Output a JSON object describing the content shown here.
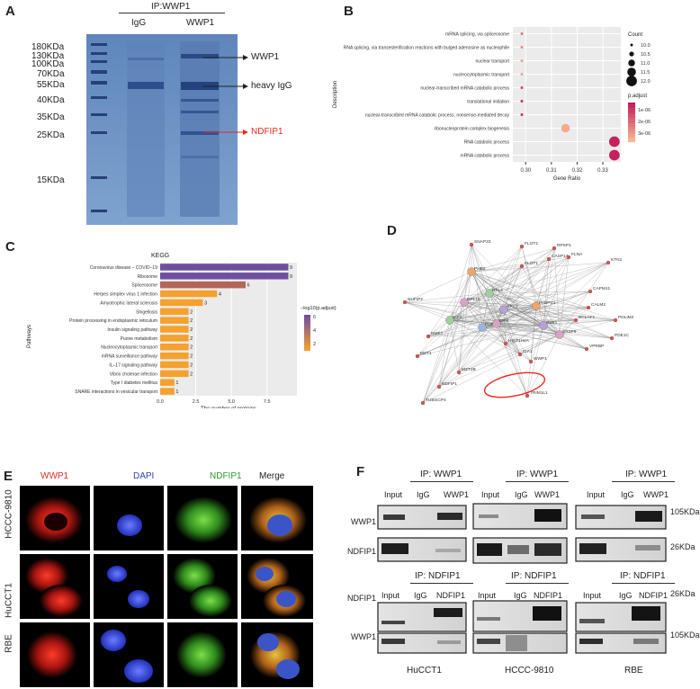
{
  "panels": {
    "A": {
      "letter": "A",
      "ip_header": "IP:WWP1",
      "lanes": [
        "IgG",
        "WWP1"
      ],
      "markers": [
        "180KDa",
        "130KDa",
        "100KDa",
        "70KDa",
        "55KDa",
        "40KDa",
        "35KDa",
        "25KDa",
        "15KDa"
      ],
      "annotations": [
        {
          "label": "WWP1",
          "color": "#222222"
        },
        {
          "label": "heavy IgG",
          "color": "#222222"
        },
        {
          "label": "NDFIP1",
          "color": "#e8271d"
        }
      ]
    },
    "B": {
      "letter": "B",
      "chart_data": {
        "type": "scatter",
        "xlabel": "Gene Ratio",
        "ylabel": "Description",
        "x_ticks": [
          "0.30",
          "0.31",
          "0.32",
          "0.33"
        ],
        "xlim": [
          0.295,
          0.337
        ],
        "categories": [
          "mRNA splicing, via spliceosome",
          "RNA splicing, via transesterification reactions with bulged adenosine as nucleophile",
          "nuclear transport",
          "nucleocytoplasmic transport",
          "nuclear-transcribed mRNA catabolic process",
          "translational initiation",
          "nuclear-transcribed mRNA catabolic process, nonsense-mediated decay",
          "ribonucleoprotein complex biogenesis",
          "RNA catabolic process",
          "mRNA catabolic process"
        ],
        "points": [
          {
            "x": 0.2985,
            "count": 10.0,
            "padj": 2e-06
          },
          {
            "x": 0.2985,
            "count": 10.0,
            "padj": 2.5e-06
          },
          {
            "x": 0.2985,
            "count": 10.0,
            "padj": 3e-06
          },
          {
            "x": 0.2985,
            "count": 10.0,
            "padj": 3e-06
          },
          {
            "x": 0.2985,
            "count": 10.0,
            "padj": 1e-06
          },
          {
            "x": 0.2985,
            "count": 10.0,
            "padj": 5e-07
          },
          {
            "x": 0.2985,
            "count": 10.0,
            "padj": 5e-07
          },
          {
            "x": 0.3155,
            "count": 11.5,
            "padj": 3.2e-06
          },
          {
            "x": 0.3345,
            "count": 12.0,
            "padj": 2e-07
          },
          {
            "x": 0.3345,
            "count": 12.0,
            "padj": 2e-07
          }
        ],
        "legend_count_title": "Count",
        "legend_count_values": [
          "10.0",
          "10.5",
          "11.0",
          "11.5",
          "12.0"
        ],
        "legend_color_title": "p.adjust",
        "legend_color_ticks": [
          "1e-06",
          "2e-06",
          "3e-06"
        ],
        "color_low": "#c2185b",
        "color_high": "#f8b98f",
        "legend_placement": "right",
        "grid": true
      }
    },
    "C": {
      "letter": "C",
      "chart_data": {
        "type": "bar",
        "title": "KEGG",
        "xlabel": "The number of proteins",
        "ylabel": "Pathways",
        "x_ticks": [
          "0.0",
          "2.5",
          "5.0",
          "7.5"
        ],
        "xlim": [
          0,
          9.6
        ],
        "categories": [
          "Coronavirus disease – COVID–19",
          "Ribosome",
          "Spliceosome",
          "Herpes simplex virus 1 infection",
          "Amyotrophic lateral sclerosis",
          "Shigellosis",
          "Protein processing in endoplasmic reticulum",
          "Insulin signaling pathway",
          "Purine metabolism",
          "Nucleocytoplasmic transport",
          "mRNA surveillance pathway",
          "IL–17 signaling pathway",
          "Vibrio cholerae infection",
          "Type I diabetes mellitus",
          "SNARE interactions in vesicular transport"
        ],
        "values": [
          9,
          9,
          6,
          4,
          3,
          2,
          2,
          2,
          2,
          2,
          2,
          2,
          2,
          1,
          1
        ],
        "value_labels": [
          "9",
          "9",
          "6",
          "4",
          "3",
          "2",
          "2",
          "2",
          "2",
          "2",
          "2",
          "2",
          "2",
          "1",
          "1"
        ],
        "bar_colors": [
          "#6e4f9e",
          "#6e4f9e",
          "#b3655a",
          "#f4a12e",
          "#f4a12e",
          "#f4a12e",
          "#f4a12e",
          "#f4a12e",
          "#f4a12e",
          "#f4a12e",
          "#f4a12e",
          "#f4a12e",
          "#f4a12e",
          "#f4a12e",
          "#f4a12e"
        ],
        "legend_title": "−log10(p.adjust)",
        "legend_ticks": [
          "6",
          "4",
          "2"
        ],
        "grid": true
      }
    },
    "D": {
      "letter": "D",
      "labels": [
        "SNAP23",
        "FLOT2",
        "RPSP1",
        "PHB2",
        "FLOT1",
        "CASP14",
        "FLNA",
        "KTN1",
        "NUFIP2",
        "CAPNS1",
        "PDLIM2",
        "CALM2",
        "BCLAF1",
        "PDE1C",
        "NME7",
        "SRSF9",
        "VPRBP",
        "MZT1",
        "MZT2B",
        "HIST1H4A",
        "ICA1",
        "WWP1",
        "NDFIP1",
        "TRIM1L1",
        "TUBGCP4",
        "RPL18",
        "RPL5",
        "RPS3",
        "PABPC1",
        "POR1",
        "ERH",
        "EIF3",
        "SSB1"
      ],
      "highlight_color": "#e8271d"
    },
    "E": {
      "letter": "E",
      "columns": [
        {
          "label": "WWP1",
          "color": "#e8271d"
        },
        {
          "label": "DAPI",
          "color": "#2e3fbf"
        },
        {
          "label": "NDFIP1",
          "color": "#2a9d2a"
        },
        {
          "label": "Merge",
          "color": "#222222"
        }
      ],
      "rows": [
        "HCCC-9810",
        "HuCCT1",
        "RBE"
      ]
    },
    "F": {
      "letter": "F",
      "ip_wwp1": "IP: WWP1",
      "ip_ndfip1": "IP: NDFIP1",
      "lane_input": "Input",
      "lane_igg": "IgG",
      "lane_wwp1": "WWP1",
      "lane_ndfip1": "NDFIP1",
      "row_wwp1": "WWP1",
      "row_ndfip1": "NDFIP1",
      "size_105": "105KDa",
      "size_26": "26KDa",
      "cell_lines": [
        "HuCCT1",
        "HCCC-9810",
        "RBE"
      ]
    }
  }
}
